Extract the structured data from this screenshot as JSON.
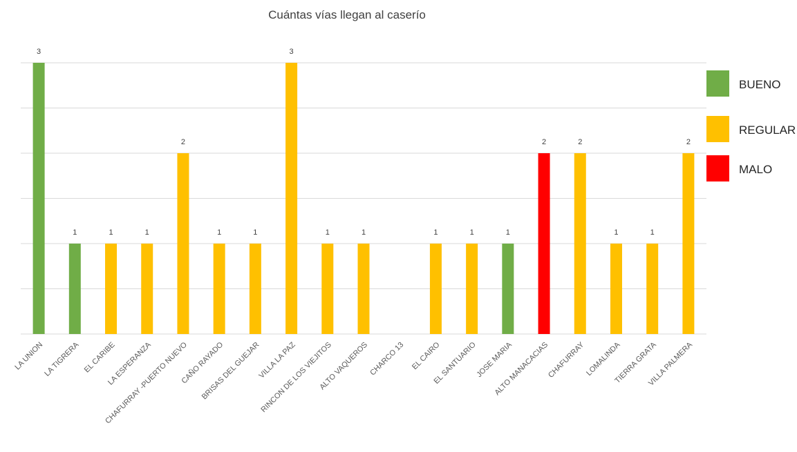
{
  "chart_data": {
    "type": "bar",
    "title": "Cuántas vías llegan al caserío",
    "xlabel": "",
    "ylabel": "",
    "ylim": [
      0,
      3
    ],
    "grid": true,
    "legend_position": "right",
    "categories": [
      "LA UNION",
      "LA TIGRERA",
      "EL CARIBE",
      "LA ESPERANZA",
      "CHAFURRAY -PUERTO NUEVO",
      "CAÑO RAYADO",
      "BRISAS DEL GUEJAR",
      "VILLA LA PAZ",
      "RINCON DE LOS VIEJITOS",
      "ALTO VAQUEROS",
      "CHARCO 13",
      "EL CAIRO",
      "EL SANTUARIO",
      "JOSE MARIA",
      "ALTO MANACACIAS",
      "CHAFURRAY",
      "LOMALINDA",
      "TIERRA GRATA",
      "VILLA PALMERA"
    ],
    "values": [
      3,
      1,
      1,
      1,
      2,
      1,
      1,
      3,
      1,
      1,
      0,
      1,
      1,
      1,
      2,
      2,
      1,
      1,
      2
    ],
    "bar_status": [
      "BUENO",
      "BUENO",
      "REGULAR",
      "REGULAR",
      "REGULAR",
      "REGULAR",
      "REGULAR",
      "REGULAR",
      "REGULAR",
      "REGULAR",
      "",
      "REGULAR",
      "REGULAR",
      "BUENO",
      "MALO",
      "REGULAR",
      "REGULAR",
      "REGULAR",
      "REGULAR"
    ],
    "legend": [
      {
        "label": "BUENO",
        "color": "#70ad47"
      },
      {
        "label": "REGULAR",
        "color": "#ffc000"
      },
      {
        "label": "MALO",
        "color": "#ff0000"
      }
    ]
  }
}
